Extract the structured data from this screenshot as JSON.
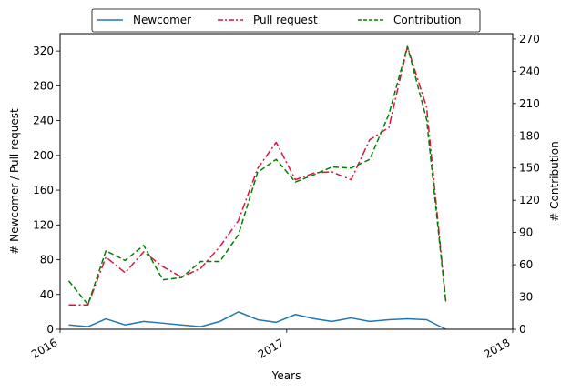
{
  "chart_data": {
    "type": "line",
    "xlabel": "Years",
    "ylabel_left": "# Newcomer / Pull request",
    "ylabel_right": "# Contribution",
    "xlim": [
      "2016-01-01",
      "2018-01-01"
    ],
    "ylim_left": [
      0,
      340
    ],
    "ylim_right": [
      0,
      275
    ],
    "x_ticks": [
      "2016",
      "2017",
      "2018"
    ],
    "y_ticks_left": [
      0,
      40,
      80,
      120,
      160,
      200,
      240,
      280,
      320
    ],
    "y_ticks_right": [
      0,
      30,
      60,
      90,
      120,
      150,
      180,
      210,
      240,
      270
    ],
    "legend_position": "top-center",
    "grid": false,
    "x": [
      "2016-01-15",
      "2016-02-15",
      "2016-03-15",
      "2016-04-15",
      "2016-05-15",
      "2016-06-15",
      "2016-07-15",
      "2016-08-15",
      "2016-09-15",
      "2016-10-15",
      "2016-11-15",
      "2016-12-15",
      "2017-01-15",
      "2017-02-15",
      "2017-03-15",
      "2017-04-15",
      "2017-05-15",
      "2017-06-15",
      "2017-07-15",
      "2017-08-15",
      "2017-09-15"
    ],
    "series": [
      {
        "name": "Newcomer",
        "axis": "left",
        "color": "#1f77b4",
        "dash": "solid",
        "values": [
          5,
          3,
          12,
          5,
          9,
          7,
          5,
          3,
          9,
          20,
          11,
          8,
          17,
          12,
          9,
          13,
          9,
          11,
          12,
          11,
          0
        ]
      },
      {
        "name": "Pull request",
        "axis": "left",
        "color": "#dc143c",
        "dash": "dashdot",
        "values": [
          28,
          28,
          83,
          65,
          89,
          72,
          60,
          70,
          95,
          125,
          185,
          215,
          172,
          180,
          181,
          172,
          218,
          232,
          325,
          255,
          32
        ]
      },
      {
        "name": "Contribution",
        "axis": "right",
        "color": "#008000",
        "dash": "dashed",
        "values": [
          45,
          23,
          73,
          64,
          78,
          46,
          48,
          63,
          63,
          88,
          146,
          158,
          137,
          144,
          151,
          150,
          158,
          200,
          263,
          195,
          25
        ]
      }
    ]
  }
}
